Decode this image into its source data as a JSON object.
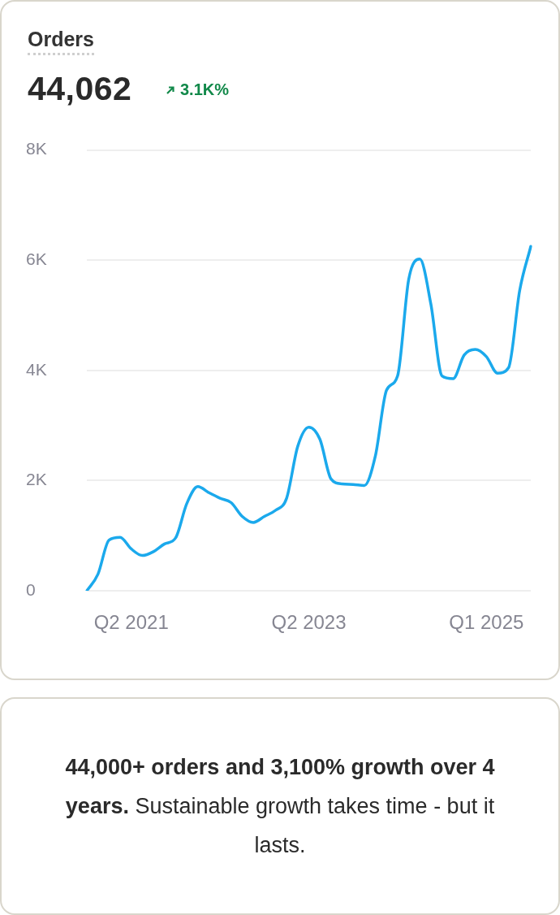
{
  "chart_data": {
    "type": "line",
    "title": "Orders",
    "subtitle": "44,062",
    "annotations": [
      "3.1K%",
      "44,000+ orders and 3,100% growth over 4 years.",
      "Sustainable growth takes time - but it lasts."
    ],
    "categories": [
      null,
      null,
      null,
      null,
      "Q2 2021",
      null,
      null,
      null,
      null,
      null,
      null,
      null,
      null,
      null,
      null,
      null,
      null,
      null,
      null,
      null,
      "Q2 2023",
      null,
      null,
      null,
      null,
      null,
      null,
      null,
      null,
      null,
      null,
      null,
      null,
      null,
      null,
      null,
      "Q1 2025",
      null,
      null,
      null,
      null
    ],
    "series": [
      {
        "color": "#1ba9ec",
        "values": [
          0,
          300,
          920,
          970,
          760,
          640,
          710,
          850,
          960,
          1580,
          1890,
          1780,
          1680,
          1600,
          1350,
          1240,
          1350,
          1460,
          1680,
          2620,
          2970,
          2750,
          2030,
          1940,
          1930,
          1910,
          2450,
          3640,
          3900,
          5650,
          6020,
          5200,
          3900,
          3850,
          4280,
          4380,
          4250,
          3950,
          4050,
          5450,
          6250
        ]
      }
    ],
    "ylim": [
      0,
      8000
    ],
    "yticks": [
      {
        "value": 0,
        "label": "0"
      },
      {
        "value": 2000,
        "label": "2K"
      },
      {
        "value": 4000,
        "label": "4K"
      },
      {
        "value": 6000,
        "label": "6K"
      },
      {
        "value": 8000,
        "label": "8K"
      }
    ],
    "grid": "y",
    "legend": false,
    "marker": "none",
    "line_style": "solid"
  }
}
